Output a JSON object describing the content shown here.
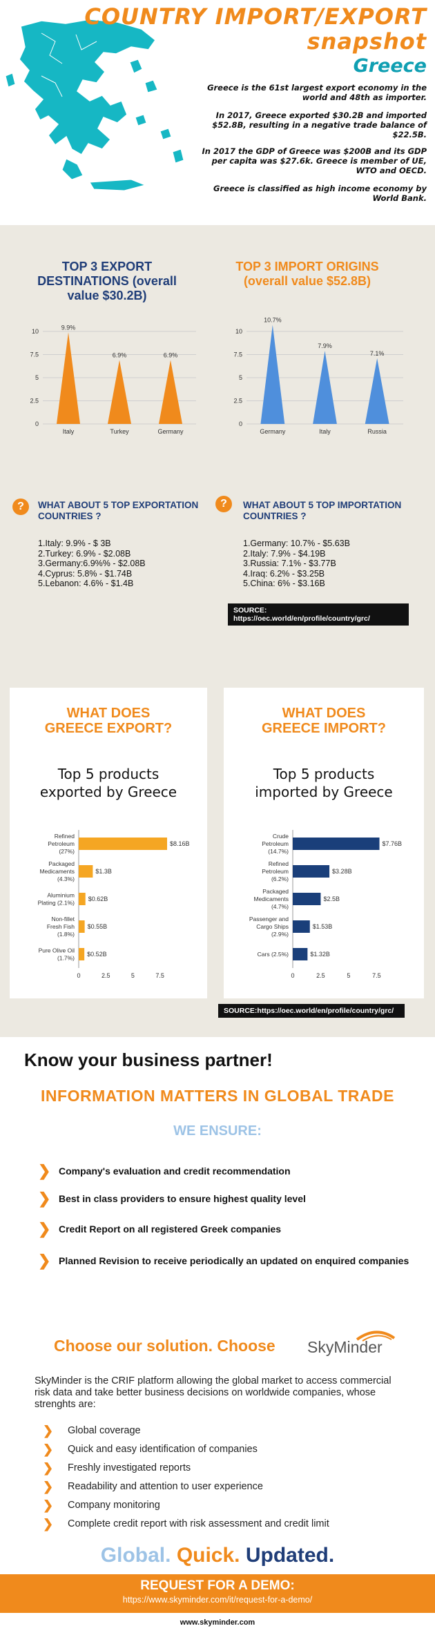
{
  "header": {
    "title_line1": "COUNTRY IMPORT/EXPORT",
    "title_line2": "snapshot",
    "country": "Greece",
    "para1": "Greece is the 61st largest export economy in the world and 48th as importer.",
    "para2": "In 2017, Greece exported $30.2B and imported $52.8B, resulting in a negative trade balance of $22.5B.",
    "para3": "In 2017 the GDP of Greece was $200B and its GDP per capita was $27.6k. Greece is member of UE, WTO and OECD.",
    "para4": "Greece is classified as high income economy by World Bank."
  },
  "export_section": {
    "title": "TOP 3 EXPORT DESTINATIONS (overall value $30.2B)",
    "question": "WHAT ABOUT 5 TOP EXPORTATION COUNTRIES ?",
    "list": [
      "1.Italy: 9.9% - $ 3B",
      "2.Turkey: 6.9% - $2.08B",
      "3.Germany:6.9%% - $2.08B",
      "4.Cyprus: 5.8% - $1.74B",
      "5.Lebanon: 4.6% - $1.4B"
    ]
  },
  "import_section": {
    "title": "TOP 3 IMPORT ORIGINS (overall value $52.8B)",
    "question": "WHAT ABOUT 5 TOP IMPORTATION COUNTRIES ?",
    "list": [
      "1.Germany: 10.7% - $5.63B",
      "2.Italy: 7.9% - $4.19B",
      "3.Russia: 7.1% - $3.77B",
      "4.Iraq: 6.2% - $3.25B",
      "5.China: 6% - $3.16B"
    ]
  },
  "source1": "SOURCE: https://oec.world/en/profile/country/grc/",
  "export_products": {
    "heading": "WHAT DOES GREECE EXPORT?",
    "subtitle": "Top 5 products exported by Greece"
  },
  "import_products": {
    "heading": "WHAT DOES GREECE IMPORT?",
    "subtitle": "Top 5 products imported by Greece"
  },
  "source2": "SOURCE:https://oec.world/en/profile/country/grc/",
  "chart_data": [
    {
      "type": "bar",
      "categories": [
        "Italy",
        "Turkey",
        "Germany"
      ],
      "values": [
        9.9,
        6.9,
        6.9
      ],
      "data_labels": [
        "9.9%",
        "6.9%",
        "6.9%"
      ],
      "ylim": [
        0,
        10
      ],
      "yticks": [
        "0",
        "2.5",
        "5",
        "7.5",
        "10"
      ],
      "color": "#f08a1c",
      "grid": true
    },
    {
      "type": "bar",
      "categories": [
        "Germany",
        "Italy",
        "Russia"
      ],
      "values": [
        10.7,
        7.9,
        7.1
      ],
      "data_labels": [
        "10.7%",
        "7.9%",
        "7.1%"
      ],
      "ylim": [
        0,
        10
      ],
      "yticks": [
        "0",
        "2.5",
        "5",
        "7.5",
        "10"
      ],
      "color": "#4f8fdc",
      "grid": true
    },
    {
      "type": "bar",
      "orientation": "horizontal",
      "categories": [
        "Refined Petroleum (27%)",
        "Packaged Medicaments (4.3%)",
        "Aluminium Plating (2.1%)",
        "Non-fillet Fresh Fish (1.8%)",
        "Pure Olive Oil (1.7%)"
      ],
      "values": [
        8.16,
        1.3,
        0.62,
        0.55,
        0.52
      ],
      "data_labels": [
        "$8.16B",
        "$1.3B",
        "$0.62B",
        "$0.55B",
        "$0.52B"
      ],
      "xlim": [
        0,
        8.16
      ],
      "xticks": [
        "0",
        "2.5",
        "5",
        "7.5"
      ],
      "color": "#f5a623"
    },
    {
      "type": "bar",
      "orientation": "horizontal",
      "categories": [
        "Crude Petroleum (14.7%)",
        "Refined Petroleum (6.2%)",
        "Packaged Medicaments (4.7%)",
        "Passenger and Cargo Ships (2.9%)",
        "Cars (2.5%)"
      ],
      "values": [
        7.76,
        3.28,
        2.5,
        1.53,
        1.32
      ],
      "data_labels": [
        "$7.76B",
        "$3.28B",
        "$2.5B",
        "$1.53B",
        "$1.32B"
      ],
      "xlim": [
        0,
        8.16
      ],
      "xticks": [
        "0",
        "2.5",
        "5",
        "7.5"
      ],
      "color": "#1a3f7a"
    }
  ],
  "business": {
    "know": "Know your business partner!",
    "info": "INFORMATION MATTERS IN GLOBAL TRADE",
    "ensure": "WE ENSURE:",
    "items": [
      "Company's evaluation and credit recommendation",
      "Best in class providers to ensure highest quality level",
      "Credit Report on all registered Greek companies",
      "Planned Revision to receive periodically an updated on enquired companies"
    ]
  },
  "solution": {
    "choose": "Choose our solution. Choose",
    "logo_text": "SkyMinder",
    "desc": "SkyMinder is the CRIF platform allowing the global market to access commercial risk data and take better business decisions on worldwide companies, whose strenghts are:",
    "strengths": [
      "Global coverage",
      "Quick and easy identification of companies",
      "Freshly investigated reports",
      "Readability and attention to user experience",
      "Company monitoring",
      "Complete credit report with risk assessment and credit limit"
    ],
    "tag_global": "Global.",
    "tag_quick": "Quick.",
    "tag_updated": "Updated.",
    "cta_title": "REQUEST FOR A DEMO:",
    "cta_url": "https://www.skyminder.com/it/request-for-a-demo/",
    "footer_url": "www.skyminder.com"
  },
  "colors": {
    "orange": "#f08a1c",
    "teal": "#0f9fb2",
    "navy": "#1f3d78",
    "light_blue": "#9dc3e6",
    "bg_beige": "#ece9e1"
  }
}
